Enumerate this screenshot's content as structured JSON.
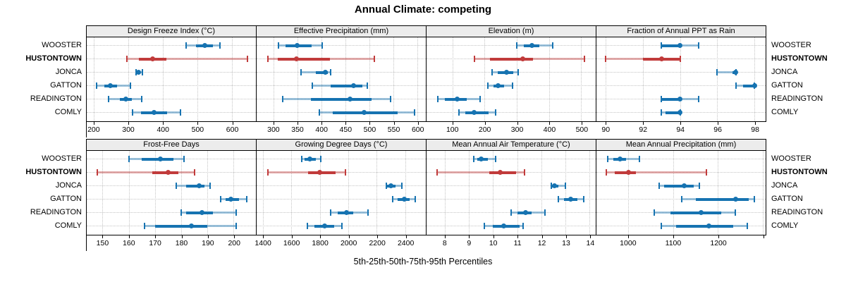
{
  "title": "Annual Climate: competing",
  "caption": "5th-25th-50th-75th-95th Percentiles",
  "highlight_label": "HUSTONTOWN",
  "series_labels": [
    "WOOSTER",
    "HUSTONTOWN",
    "JONCA",
    "GATTON",
    "READINGTON",
    "COMLY"
  ],
  "colors": {
    "series": "#1673b1",
    "highlight": "#c13b3b",
    "strip_bg": "#ececec",
    "grid": "#c4c4c4"
  },
  "chart_data": {
    "type": "table",
    "subtype": "trellis-percentile-dotplot",
    "grid": {
      "rows": 2,
      "cols": 4,
      "gridlines": "dotted",
      "strip_headers": true
    },
    "percentiles": [
      5,
      25,
      50,
      75,
      95
    ],
    "xlabel": "5th-25th-50th-75th-95th Percentiles",
    "panels": [
      {
        "slug": "design-freeze-index",
        "title": "Design Freeze Index (°C)",
        "domain": [
          180,
          670
        ],
        "ticks": [
          200,
          300,
          400,
          500,
          600
        ],
        "tick_labels": [
          "200",
          "300",
          "400",
          "500",
          "600"
        ],
        "series": [
          {
            "name": "WOOSTER",
            "p": [
              467,
              497,
              521,
              545,
              566
            ]
          },
          {
            "name": "HUSTONTOWN",
            "p": [
              297,
              331,
              371,
              411,
              645
            ]
          },
          {
            "name": "JONCA",
            "p": [
              322,
              327,
              331,
              336,
              341
            ]
          },
          {
            "name": "GATTON",
            "p": [
              208,
              232,
              248,
              267,
              306
            ]
          },
          {
            "name": "READINGTON",
            "p": [
              243,
              276,
              294,
              311,
              339
            ]
          },
          {
            "name": "COMLY",
            "p": [
              312,
              338,
              375,
              413,
              452
            ]
          }
        ]
      },
      {
        "slug": "effective-precipitation",
        "title": "Effective Precipitation (mm)",
        "domain": [
          265,
          618
        ],
        "ticks": [
          300,
          350,
          400,
          450,
          500,
          550,
          600
        ],
        "tick_labels": [
          "300",
          "350",
          "400",
          "450",
          "500",
          "550",
          "600"
        ],
        "series": [
          {
            "name": "WOOSTER",
            "p": [
              311,
              326,
              350,
              379,
              402
            ]
          },
          {
            "name": "HUSTONTOWN",
            "p": [
              288,
              309,
              348,
              418,
              511
            ]
          },
          {
            "name": "JONCA",
            "p": [
              357,
              388,
              409,
              414,
              420
            ]
          },
          {
            "name": "GATTON",
            "p": [
              381,
              419,
              467,
              486,
              496
            ]
          },
          {
            "name": "READINGTON",
            "p": [
              320,
              378,
              460,
              505,
              544
            ]
          },
          {
            "name": "COMLY",
            "p": [
              396,
              424,
              489,
              559,
              594
            ]
          }
        ]
      },
      {
        "slug": "elevation",
        "title": "Elevation (m)",
        "domain": [
          20,
          545
        ],
        "ticks": [
          100,
          200,
          300,
          400,
          500
        ],
        "tick_labels": [
          "100",
          "200",
          "300",
          "400",
          "500"
        ],
        "series": [
          {
            "name": "WOOSTER",
            "p": [
              300,
              322,
              348,
              369,
              411
            ]
          },
          {
            "name": "HUSTONTOWN",
            "p": [
              168,
              217,
              318,
              350,
              510
            ]
          },
          {
            "name": "JONCA",
            "p": [
              224,
              242,
              268,
              288,
              304
            ]
          },
          {
            "name": "GATTON",
            "p": [
              211,
              227,
              243,
              260,
              287
            ]
          },
          {
            "name": "READINGTON",
            "p": [
              55,
              77,
              115,
              145,
              186
            ]
          },
          {
            "name": "COMLY",
            "p": [
              121,
              141,
              168,
              212,
              235
            ]
          }
        ]
      },
      {
        "slug": "fraction-annual-ppt-rain",
        "title": "Fraction of Annual PPT as Rain",
        "domain": [
          89.5,
          98.6
        ],
        "ticks": [
          90,
          92,
          94,
          96,
          98
        ],
        "tick_labels": [
          "90",
          "92",
          "94",
          "96",
          "98"
        ],
        "series": [
          {
            "name": "WOOSTER",
            "p": [
              93,
              93,
              94,
              94,
              95
            ]
          },
          {
            "name": "HUSTONTOWN",
            "p": [
              90,
              92,
              93,
              94,
              94
            ]
          },
          {
            "name": "JONCA",
            "p": [
              96,
              96.8,
              97,
              97,
              97
            ]
          },
          {
            "name": "GATTON",
            "p": [
              97,
              97.4,
              98,
              98,
              98
            ]
          },
          {
            "name": "READINGTON",
            "p": [
              93,
              93,
              94,
              94,
              95
            ]
          },
          {
            "name": "COMLY",
            "p": [
              93,
              93.2,
              94,
              94,
              94
            ]
          }
        ]
      },
      {
        "slug": "frost-free-days",
        "title": "Frost-Free Days",
        "domain": [
          144,
          208.5
        ],
        "ticks": [
          150,
          160,
          170,
          180,
          190,
          200
        ],
        "tick_labels": [
          "150",
          "160",
          "170",
          "180",
          "190",
          "200"
        ],
        "series": [
          {
            "name": "WOOSTER",
            "p": [
              160,
              165,
              172,
              177,
              181
            ]
          },
          {
            "name": "HUSTONTOWN",
            "p": [
              148,
              169,
              175,
              179,
              185
            ]
          },
          {
            "name": "JONCA",
            "p": [
              178,
              182,
              187,
              189,
              191
            ]
          },
          {
            "name": "GATTON",
            "p": [
              195,
              197,
              199,
              202,
              205
            ]
          },
          {
            "name": "READINGTON",
            "p": [
              180,
              182,
              188,
              192,
              201
            ]
          },
          {
            "name": "COMLY",
            "p": [
              166,
              170,
              184,
              190,
              201
            ]
          }
        ]
      },
      {
        "slug": "growing-degree-days",
        "title": "Growing Degree Days (°C)",
        "domain": [
          1355,
          2545
        ],
        "ticks": [
          1400,
          1600,
          1800,
          2000,
          2200,
          2400
        ],
        "tick_labels": [
          "1400",
          "1600",
          "1800",
          "2000",
          "2200",
          "2400"
        ],
        "series": [
          {
            "name": "WOOSTER",
            "p": [
              1670,
              1692,
              1727,
              1773,
              1806
            ]
          },
          {
            "name": "HUSTONTOWN",
            "p": [
              1432,
              1718,
              1800,
              1908,
              1982
            ]
          },
          {
            "name": "JONCA",
            "p": [
              2265,
              2272,
              2300,
              2330,
              2375
            ]
          },
          {
            "name": "GATTON",
            "p": [
              2311,
              2345,
              2393,
              2430,
              2470
            ]
          },
          {
            "name": "READINGTON",
            "p": [
              1876,
              1925,
              1985,
              2032,
              2139
            ]
          },
          {
            "name": "COMLY",
            "p": [
              1712,
              1761,
              1835,
              1901,
              1957
            ]
          }
        ]
      },
      {
        "slug": "mean-annual-air-temperature",
        "title": "Mean Annual Air Temperature (°C)",
        "domain": [
          7.25,
          14.25
        ],
        "ticks": [
          8,
          9,
          10,
          11,
          12,
          13,
          14
        ],
        "tick_labels": [
          "8",
          "9",
          "10",
          "11",
          "12",
          "13",
          "14"
        ],
        "series": [
          {
            "name": "WOOSTER",
            "p": [
              9.2,
              9.35,
              9.5,
              9.8,
              10.1
            ]
          },
          {
            "name": "HUSTONTOWN",
            "p": [
              7.7,
              9.85,
              10.3,
              10.95,
              11.3
            ]
          },
          {
            "name": "JONCA",
            "p": [
              12.4,
              12.45,
              12.55,
              12.7,
              13.0
            ]
          },
          {
            "name": "GATTON",
            "p": [
              12.7,
              12.95,
              13.2,
              13.5,
              13.75
            ]
          },
          {
            "name": "READINGTON",
            "p": [
              10.75,
              11.0,
              11.35,
              11.6,
              12.15
            ]
          },
          {
            "name": "COMLY",
            "p": [
              9.65,
              10.0,
              10.45,
              11.1,
              11.25
            ]
          }
        ]
      },
      {
        "slug": "mean-annual-precipitation",
        "title": "Mean Annual Precipitation (mm)",
        "domain": [
          930,
          1306
        ],
        "ticks": [
          1000,
          1100,
          1200,
          1300
        ],
        "tick_labels": [
          "1000",
          "1100",
          "1200",
          ""
        ],
        "series": [
          {
            "name": "WOOSTER",
            "p": [
              955,
              967,
              982,
              996,
              1025
            ]
          },
          {
            "name": "HUSTONTOWN",
            "p": [
              952,
              970,
              1002,
              1017,
              1175
            ]
          },
          {
            "name": "JONCA",
            "p": [
              1070,
              1080,
              1125,
              1146,
              1158
            ]
          },
          {
            "name": "GATTON",
            "p": [
              1120,
              1151,
              1239,
              1269,
              1281
            ]
          },
          {
            "name": "READINGTON",
            "p": [
              1058,
              1094,
              1163,
              1208,
              1239
            ]
          },
          {
            "name": "COMLY",
            "p": [
              1074,
              1107,
              1180,
              1234,
              1265
            ]
          }
        ]
      }
    ]
  }
}
